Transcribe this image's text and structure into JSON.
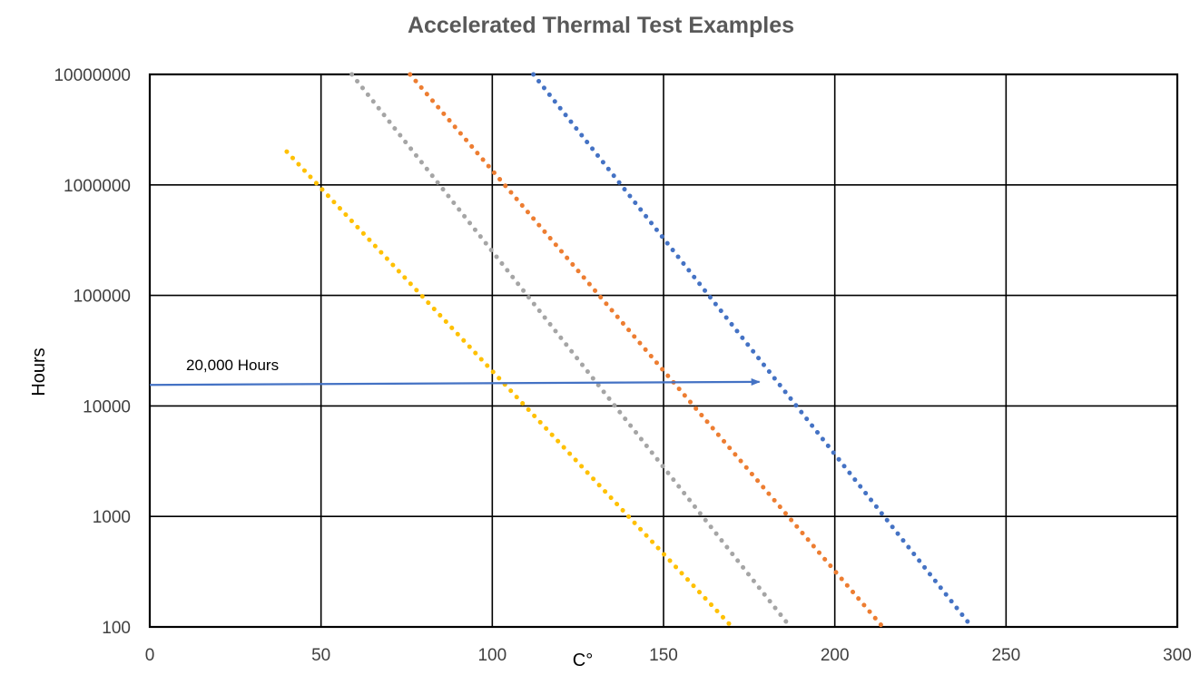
{
  "chart_data": {
    "type": "line",
    "title": "Accelerated Thermal Test Examples",
    "xlabel": "C°",
    "ylabel": "Hours",
    "xlim": [
      0,
      300
    ],
    "ylim": [
      100,
      10000000
    ],
    "yscale": "log",
    "grid": true,
    "legend": "none",
    "x_ticks": [
      "0",
      "50",
      "100",
      "150",
      "200",
      "250",
      "300"
    ],
    "y_ticks": [
      "100",
      "1000",
      "10000",
      "100000",
      "1000000",
      "10000000"
    ],
    "series": [
      {
        "color": "#4472C4",
        "style": "dotted",
        "x": [
          112,
          240
        ],
        "y": [
          10000000,
          100
        ]
      },
      {
        "color": "#ED7D31",
        "style": "dotted",
        "x": [
          76,
          214
        ],
        "y": [
          10000000,
          100
        ]
      },
      {
        "color": "#A5A5A5",
        "style": "dotted",
        "x": [
          59,
          187
        ],
        "y": [
          10000000,
          100
        ]
      },
      {
        "color": "#FFC000",
        "style": "dotted",
        "x": [
          40,
          170
        ],
        "y": [
          2000000,
          100
        ]
      }
    ],
    "annotations": [
      {
        "text": "20,000 Hours",
        "type": "arrow",
        "color": "#4472C4",
        "x_from": 0,
        "x_to": 178,
        "y_from": 15500,
        "y_to": 16500
      }
    ]
  }
}
